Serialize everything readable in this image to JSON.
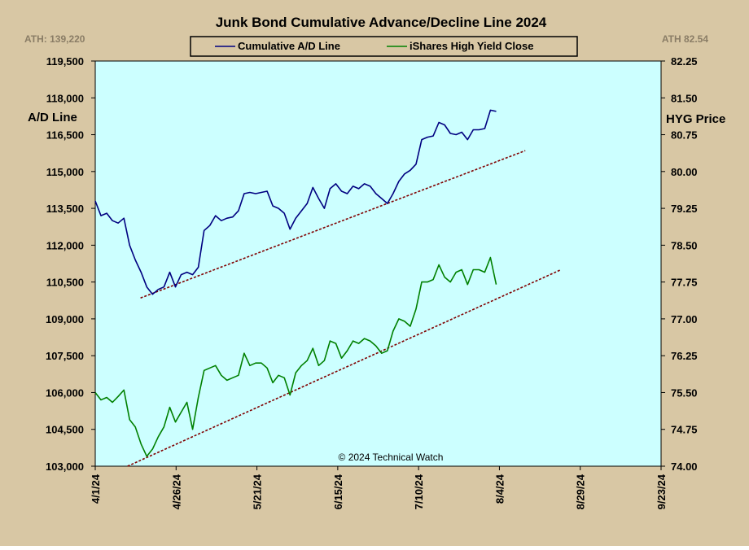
{
  "chart_data": {
    "type": "line",
    "title": "Junk Bond Cumulative  Advance/Decline  Line  2024",
    "legend_position": "top-center",
    "grid": false,
    "ath_left": "ATH: 139,220",
    "ath_right": "ATH 82.54",
    "y_left_label": "A/D Line",
    "y_right_label": "HYG Price",
    "watermark": "© 2024 Technical Watch",
    "background_color": "#d8c7a4",
    "plot_color": "#ccffff",
    "x_axis": {
      "range": [
        "4/1/24",
        "9/23/24"
      ],
      "tick_labels": [
        "4/1/24",
        "4/26/24",
        "5/21/24",
        "6/15/24",
        "7/10/24",
        "8/4/24",
        "8/29/24",
        "9/23/24"
      ]
    },
    "y_left": {
      "range": [
        103000,
        119500
      ],
      "tick_labels": [
        "119,500",
        "118,000",
        "116,500",
        "115,000",
        "113,500",
        "112,000",
        "110,500",
        "109,000",
        "107,500",
        "106,000",
        "104,500",
        "103,000"
      ]
    },
    "y_right": {
      "range": [
        74.0,
        82.25
      ],
      "tick_labels": [
        "82.25",
        "81.50",
        "80.75",
        "80.00",
        "79.25",
        "78.50",
        "77.75",
        "77.00",
        "76.25",
        "75.50",
        "74.75",
        "74.00"
      ]
    },
    "series": [
      {
        "name": "Cumulative A/D Line",
        "axis": "left",
        "color": "#000080",
        "points": [
          [
            0,
            113800
          ],
          [
            1,
            113200
          ],
          [
            2,
            113300
          ],
          [
            3,
            113000
          ],
          [
            4,
            112900
          ],
          [
            5,
            113100
          ],
          [
            6,
            112000
          ],
          [
            7,
            111400
          ],
          [
            8,
            110900
          ],
          [
            9,
            110300
          ],
          [
            10,
            110000
          ],
          [
            11,
            110200
          ],
          [
            12,
            110300
          ],
          [
            13,
            110900
          ],
          [
            14,
            110300
          ],
          [
            15,
            110800
          ],
          [
            16,
            110900
          ],
          [
            17,
            110800
          ],
          [
            18,
            111100
          ],
          [
            19,
            112600
          ],
          [
            20,
            112800
          ],
          [
            21,
            113200
          ],
          [
            22,
            113000
          ],
          [
            23,
            113100
          ],
          [
            24,
            113150
          ],
          [
            25,
            113400
          ],
          [
            26,
            114100
          ],
          [
            27,
            114150
          ],
          [
            28,
            114100
          ],
          [
            29,
            114150
          ],
          [
            30,
            114200
          ],
          [
            31,
            113600
          ],
          [
            32,
            113500
          ],
          [
            33,
            113300
          ],
          [
            34,
            112650
          ],
          [
            35,
            113100
          ],
          [
            36,
            113400
          ],
          [
            37,
            113700
          ],
          [
            38,
            114350
          ],
          [
            39,
            113900
          ],
          [
            40,
            113500
          ],
          [
            41,
            114300
          ],
          [
            42,
            114500
          ],
          [
            43,
            114200
          ],
          [
            44,
            114100
          ],
          [
            45,
            114400
          ],
          [
            46,
            114300
          ],
          [
            47,
            114500
          ],
          [
            48,
            114400
          ],
          [
            49,
            114100
          ],
          [
            50,
            113900
          ],
          [
            51,
            113700
          ],
          [
            52,
            114100
          ],
          [
            53,
            114600
          ],
          [
            54,
            114900
          ],
          [
            55,
            115050
          ],
          [
            56,
            115300
          ],
          [
            57,
            116300
          ],
          [
            58,
            116400
          ],
          [
            59,
            116450
          ],
          [
            60,
            117000
          ],
          [
            61,
            116900
          ],
          [
            62,
            116550
          ],
          [
            63,
            116500
          ],
          [
            64,
            116600
          ],
          [
            65,
            116300
          ],
          [
            66,
            116700
          ],
          [
            67,
            116700
          ],
          [
            68,
            116750
          ],
          [
            69,
            117500
          ],
          [
            70,
            117450
          ]
        ]
      },
      {
        "name": "iShares High Yield Close",
        "axis": "right",
        "color": "#008000",
        "points": [
          [
            0,
            75.5
          ],
          [
            1,
            75.35
          ],
          [
            2,
            75.4
          ],
          [
            3,
            75.3
          ],
          [
            4,
            75.42
          ],
          [
            5,
            75.55
          ],
          [
            6,
            74.95
          ],
          [
            7,
            74.8
          ],
          [
            8,
            74.45
          ],
          [
            9,
            74.2
          ],
          [
            10,
            74.35
          ],
          [
            11,
            74.6
          ],
          [
            12,
            74.8
          ],
          [
            13,
            75.2
          ],
          [
            14,
            74.9
          ],
          [
            15,
            75.1
          ],
          [
            16,
            75.3
          ],
          [
            17,
            74.75
          ],
          [
            18,
            75.4
          ],
          [
            19,
            75.95
          ],
          [
            20,
            76.0
          ],
          [
            21,
            76.05
          ],
          [
            22,
            75.85
          ],
          [
            23,
            75.75
          ],
          [
            24,
            75.8
          ],
          [
            25,
            75.85
          ],
          [
            26,
            76.3
          ],
          [
            27,
            76.05
          ],
          [
            28,
            76.1
          ],
          [
            29,
            76.1
          ],
          [
            30,
            76.0
          ],
          [
            31,
            75.7
          ],
          [
            32,
            75.85
          ],
          [
            33,
            75.8
          ],
          [
            34,
            75.45
          ],
          [
            35,
            75.9
          ],
          [
            36,
            76.05
          ],
          [
            37,
            76.15
          ],
          [
            38,
            76.4
          ],
          [
            39,
            76.05
          ],
          [
            40,
            76.15
          ],
          [
            41,
            76.55
          ],
          [
            42,
            76.5
          ],
          [
            43,
            76.2
          ],
          [
            44,
            76.35
          ],
          [
            45,
            76.55
          ],
          [
            46,
            76.5
          ],
          [
            47,
            76.6
          ],
          [
            48,
            76.55
          ],
          [
            49,
            76.45
          ],
          [
            50,
            76.3
          ],
          [
            51,
            76.35
          ],
          [
            52,
            76.75
          ],
          [
            53,
            77.0
          ],
          [
            54,
            76.95
          ],
          [
            55,
            76.85
          ],
          [
            56,
            77.2
          ],
          [
            57,
            77.75
          ],
          [
            58,
            77.75
          ],
          [
            59,
            77.8
          ],
          [
            60,
            78.1
          ],
          [
            61,
            77.85
          ],
          [
            62,
            77.75
          ],
          [
            63,
            77.95
          ],
          [
            64,
            78.0
          ],
          [
            65,
            77.7
          ],
          [
            66,
            78.0
          ],
          [
            67,
            78.0
          ],
          [
            68,
            77.95
          ],
          [
            69,
            78.25
          ],
          [
            70,
            77.7
          ]
        ]
      }
    ],
    "trendlines": [
      {
        "axis": "left",
        "color": "#800000",
        "from": [
          14,
          109850
        ],
        "to": [
          133,
          115850
        ]
      },
      {
        "axis": "right",
        "color": "#800000",
        "from": [
          10,
          74.0
        ],
        "to": [
          144,
          78.0
        ]
      }
    ]
  }
}
